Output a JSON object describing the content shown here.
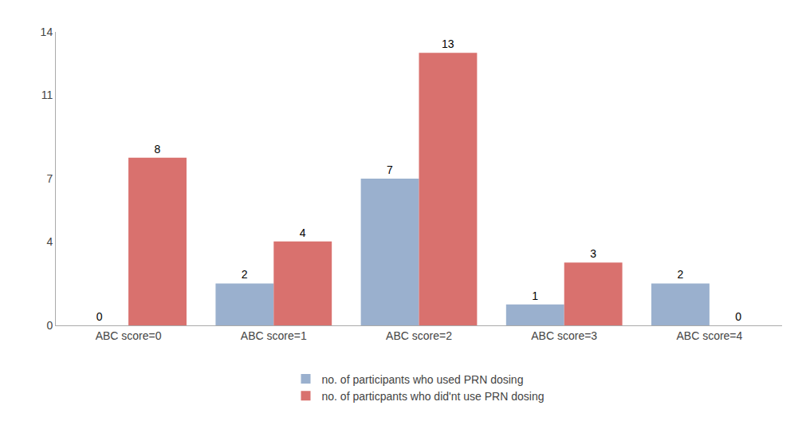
{
  "chart_data": {
    "type": "bar",
    "categories": [
      "ABC score=0",
      "ABC score=1",
      "ABC score=2",
      "ABC score=3",
      "ABC score=4"
    ],
    "series": [
      {
        "name": "no. of participants who used PRN dosing",
        "color": "#9ab0ce",
        "values": [
          0,
          2,
          7,
          1,
          2
        ]
      },
      {
        "name": "no. of particpants who did'nt use PRN dosing",
        "color": "#d9716e",
        "values": [
          8,
          4,
          13,
          3,
          0
        ]
      }
    ],
    "ylim": [
      0,
      14
    ],
    "yticks": [
      0,
      4,
      7,
      11,
      14
    ],
    "grid": false,
    "data_labels": true,
    "legend": "bottom"
  }
}
